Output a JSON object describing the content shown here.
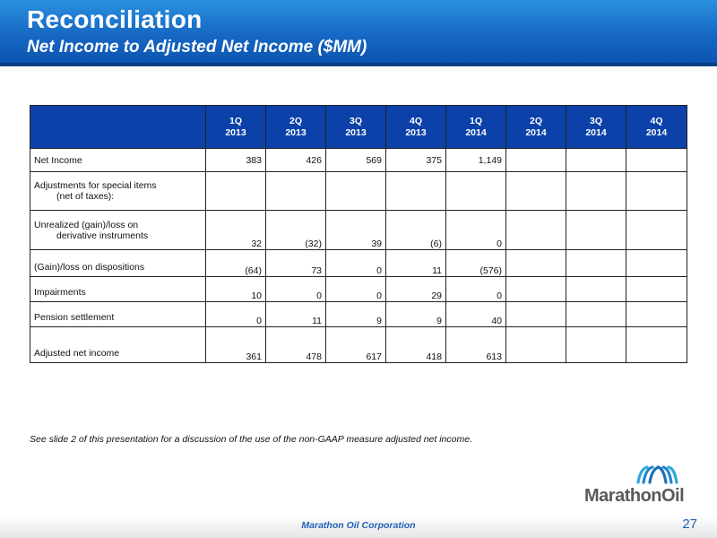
{
  "header": {
    "title": "Reconciliation",
    "subtitle": "Net Income to Adjusted Net Income ($MM)"
  },
  "table": {
    "columns": [
      {
        "quarter": "1Q",
        "year": "2013"
      },
      {
        "quarter": "2Q",
        "year": "2013"
      },
      {
        "quarter": "3Q",
        "year": "2013"
      },
      {
        "quarter": "4Q",
        "year": "2013"
      },
      {
        "quarter": "1Q",
        "year": "2014"
      },
      {
        "quarter": "2Q",
        "year": "2014"
      },
      {
        "quarter": "3Q",
        "year": "2014"
      },
      {
        "quarter": "4Q",
        "year": "2014"
      }
    ],
    "rows": [
      {
        "label": "Net Income",
        "sublabel": "",
        "values": [
          "383",
          "426",
          "569",
          "375",
          "1,149",
          "",
          "",
          ""
        ]
      },
      {
        "label": "Adjustments for special items",
        "sublabel": "(net of taxes):",
        "values": [
          "",
          "",
          "",
          "",
          "",
          "",
          "",
          ""
        ]
      },
      {
        "label": "Unrealized (gain)/loss on",
        "sublabel": "derivative instruments",
        "values": [
          "32",
          "(32)",
          "39",
          "(6)",
          "0",
          "",
          "",
          ""
        ]
      },
      {
        "label": "(Gain)/loss on dispositions",
        "sublabel": "",
        "values": [
          "(64)",
          "73",
          "0",
          "11",
          "(576)",
          "",
          "",
          ""
        ]
      },
      {
        "label": "Impairments",
        "sublabel": "",
        "values": [
          "10",
          "0",
          "0",
          "29",
          "0",
          "",
          "",
          ""
        ]
      },
      {
        "label": "Pension settlement",
        "sublabel": "",
        "values": [
          "0",
          "11",
          "9",
          "9",
          "40",
          "",
          "",
          ""
        ]
      },
      {
        "label": "Adjusted net income",
        "sublabel": "",
        "values": [
          "361",
          "478",
          "617",
          "418",
          "613",
          "",
          "",
          ""
        ]
      }
    ]
  },
  "footnote": "See slide 2 of this presentation for a discussion of the use of the non-GAAP measure adjusted net income.",
  "logo": {
    "text": "MarathonOil",
    "icon": "marathon-oil-wave-icon"
  },
  "footer": {
    "company": "Marathon Oil Corporation",
    "page_number": "27"
  },
  "colors": {
    "header_blue": "#1466c2",
    "table_header_blue": "#0b41a8",
    "footer_text_blue": "#1f5fb8"
  }
}
